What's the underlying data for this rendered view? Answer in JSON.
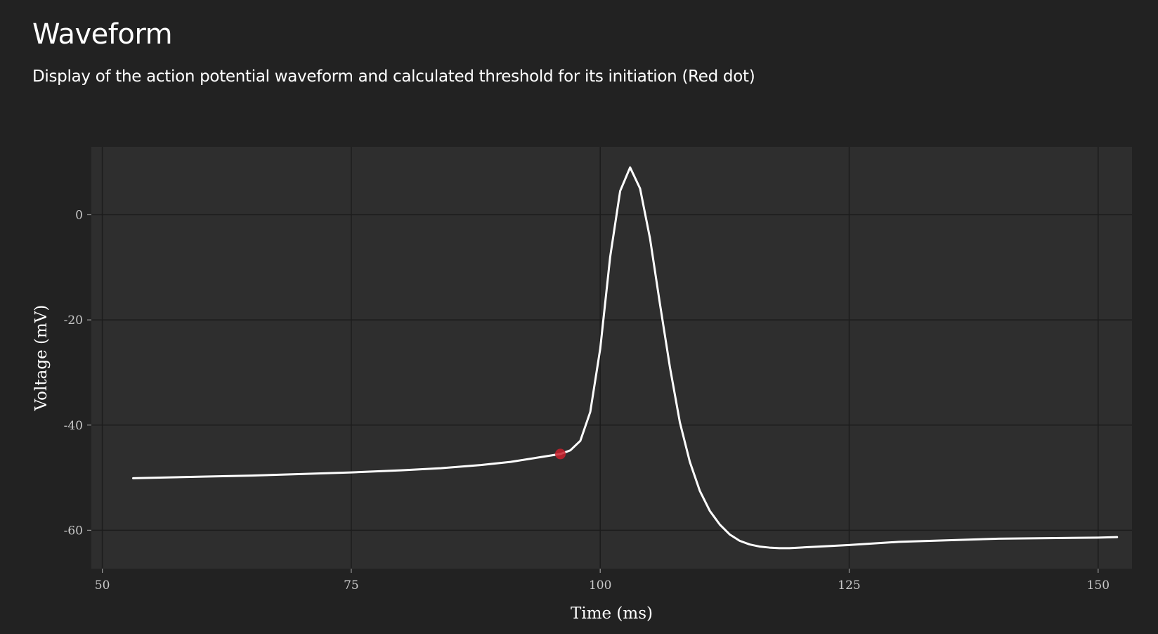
{
  "header": {
    "title": "Waveform",
    "subtitle": "Display of the action potential waveform and calculated threshold for its initiation (Red dot)"
  },
  "colors": {
    "background": "#222222",
    "panel": "#2e2e2e",
    "grid": "#1c1c1c",
    "line": "#ffffff",
    "threshold": "#c8202c"
  },
  "chart_data": {
    "type": "line",
    "title": "",
    "xlabel": "Time (ms)",
    "ylabel": "Voltage (mV)",
    "xlim": [
      48.9,
      153.4
    ],
    "ylim": [
      -67.3,
      12.9
    ],
    "xticks": [
      50,
      75,
      100,
      125,
      150
    ],
    "yticks": [
      0,
      -20,
      -40,
      -60
    ],
    "grid": true,
    "legend": "none",
    "series": [
      {
        "x": [
          53.1,
          60,
          65,
          70,
          75,
          80,
          84,
          88,
          91,
          94,
          96,
          97,
          98,
          99,
          100,
          101,
          102,
          103,
          104,
          105,
          106,
          107,
          108,
          109,
          110,
          111,
          112,
          113,
          114,
          115,
          116,
          117,
          118,
          119,
          120,
          122,
          125,
          130,
          135,
          140,
          145,
          150,
          151.9
        ],
        "y": [
          -50.1,
          -49.8,
          -49.6,
          -49.3,
          -49.0,
          -48.6,
          -48.2,
          -47.6,
          -47.0,
          -46.1,
          -45.5,
          -44.8,
          -43.0,
          -37.5,
          -25.5,
          -8.0,
          4.5,
          9.0,
          5.0,
          -4.5,
          -17.0,
          -29.0,
          -39.5,
          -47.0,
          -52.5,
          -56.3,
          -58.9,
          -60.8,
          -62.0,
          -62.7,
          -63.1,
          -63.3,
          -63.4,
          -63.4,
          -63.3,
          -63.1,
          -62.8,
          -62.2,
          -61.9,
          -61.6,
          -61.5,
          -61.4,
          -61.3
        ]
      }
    ],
    "threshold_point": {
      "x": 96,
      "y": -45.5
    }
  }
}
